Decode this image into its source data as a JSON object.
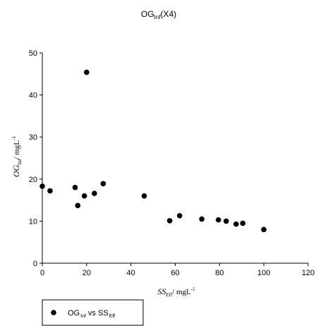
{
  "chart_data": {
    "type": "scatter",
    "title": {
      "main": "OG",
      "sub": "Inf",
      "suffix": "(X4)"
    },
    "xlabel": {
      "var": "SS",
      "sub": "Eff",
      "unit": "/ mgL",
      "sup": "-1"
    },
    "ylabel": {
      "var": "OG",
      "sub": "Inf",
      "unit": "/ mgL",
      "sup": "-1"
    },
    "xlim": [
      0,
      120
    ],
    "ylim": [
      0,
      50
    ],
    "xticks": [
      0,
      20,
      40,
      60,
      80,
      100,
      120
    ],
    "yticks": [
      0,
      10,
      20,
      30,
      40,
      50
    ],
    "grid": false,
    "legend_position": "bottom-left",
    "series": [
      {
        "name": {
          "main": "OG",
          "sub1": "Inf",
          "mid": "vs SS",
          "sub2": "Eff"
        },
        "color": "#000000",
        "points": [
          {
            "x": 0,
            "y": 18.3
          },
          {
            "x": 3.5,
            "y": 17.2
          },
          {
            "x": 14.8,
            "y": 18.0
          },
          {
            "x": 16,
            "y": 13.7
          },
          {
            "x": 19,
            "y": 16.0
          },
          {
            "x": 20,
            "y": 45.4
          },
          {
            "x": 23.5,
            "y": 16.6
          },
          {
            "x": 27.5,
            "y": 18.9
          },
          {
            "x": 46,
            "y": 16.0
          },
          {
            "x": 57.5,
            "y": 10.1
          },
          {
            "x": 62,
            "y": 11.3
          },
          {
            "x": 72,
            "y": 10.5
          },
          {
            "x": 79.5,
            "y": 10.3
          },
          {
            "x": 83,
            "y": 10.0
          },
          {
            "x": 87.5,
            "y": 9.3
          },
          {
            "x": 90.5,
            "y": 9.5
          },
          {
            "x": 100,
            "y": 8.0
          }
        ]
      }
    ]
  }
}
